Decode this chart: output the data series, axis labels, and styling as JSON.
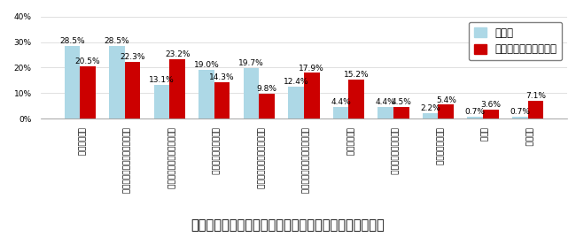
{
  "categories": [
    "ダマができる",
    "ちょうどよいとろみがつかない",
    "適度とろみをつけるのが手間",
    "時間が経つと緩くなる",
    "加熱しないとろみがつかない",
    "１人分とろみをつけるのが手間",
    "味が気になる",
    "保存中に温度で固まる",
    "においが気になる",
    "その他",
    "特に無い"
  ],
  "katakuriko": [
    28.5,
    28.5,
    13.1,
    19.0,
    19.7,
    12.4,
    4.4,
    4.4,
    2.2,
    0.7,
    0.7
  ],
  "kaigo": [
    20.5,
    22.3,
    23.2,
    14.3,
    9.8,
    17.9,
    15.2,
    4.5,
    5.4,
    3.6,
    7.1
  ],
  "color_katakuriko": "#ADD8E6",
  "color_kaigo": "#CC0000",
  "ylabel_max": 40,
  "yticks": [
    0,
    10,
    20,
    30,
    40
  ],
  "title": "資料３－２　食事にとろみをつける上で困っていること",
  "legend_katakuriko": "片栗粉",
  "legend_kaigo": "介護用とろみ調整食品",
  "bar_width": 0.35,
  "label_fontsize": 6.5,
  "tick_fontsize": 6.5,
  "title_fontsize": 10.5,
  "legend_fontsize": 8.5
}
